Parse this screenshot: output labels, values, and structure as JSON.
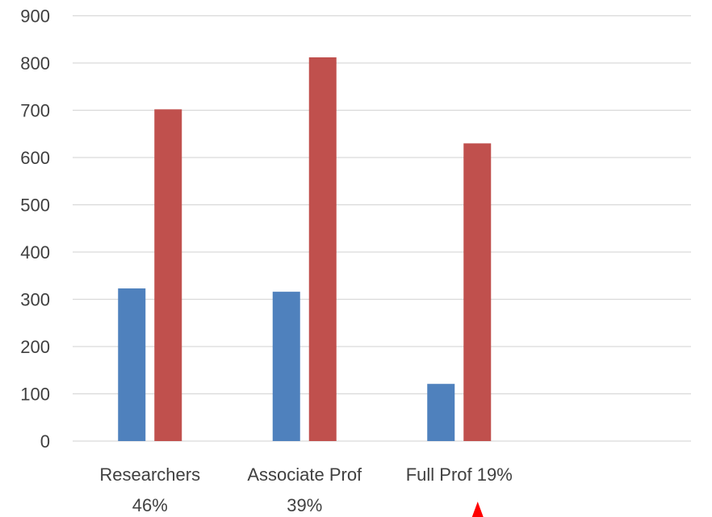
{
  "chart_data": {
    "type": "bar",
    "categories": [
      [
        "Researchers",
        "46%"
      ],
      [
        "Associate Prof",
        "39%"
      ],
      [
        "Full Prof 19%"
      ],
      [
        ""
      ]
    ],
    "series": [
      {
        "values": [
          323,
          316,
          121,
          null
        ],
        "color": "#4f81bd"
      },
      {
        "values": [
          702,
          812,
          630,
          null
        ],
        "color": "#c0504d"
      }
    ],
    "ylim": [
      0,
      900
    ],
    "yticks": [
      0,
      100,
      200,
      300,
      400,
      500,
      600,
      700,
      800,
      900
    ],
    "grid": true,
    "legend": "none",
    "title": "",
    "xlabel": "",
    "ylabel": ""
  },
  "annotation": {
    "marker": "triangle-up",
    "color": "#ff0000"
  }
}
